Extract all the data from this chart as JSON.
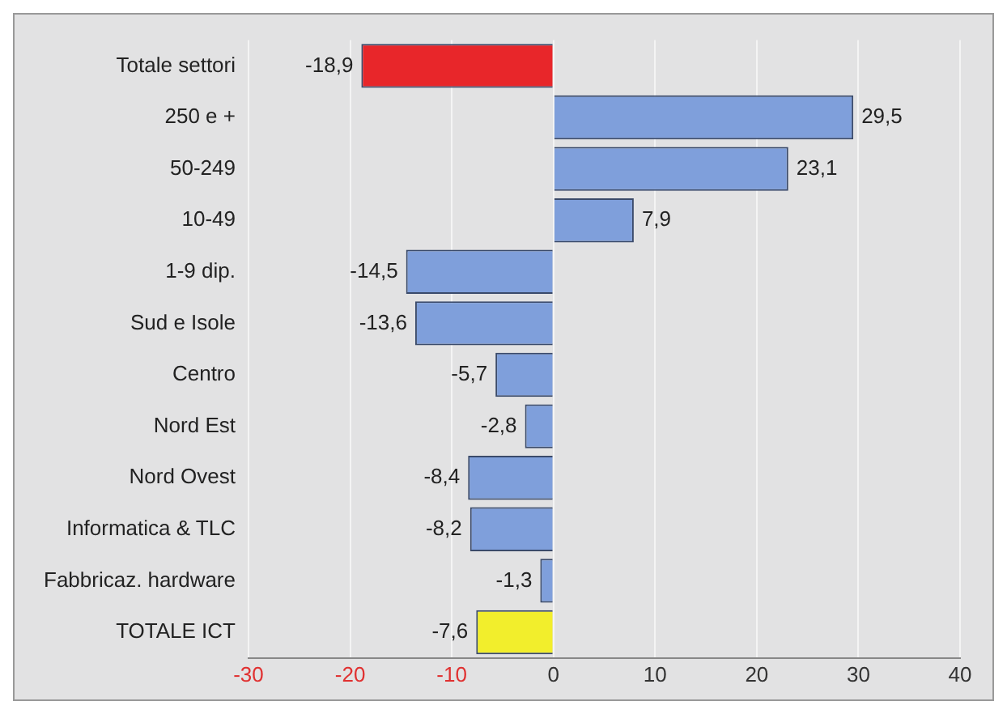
{
  "chart_data": {
    "type": "bar",
    "orientation": "horizontal",
    "categories": [
      "Totale settori",
      "250 e +",
      "50-249",
      "10-49",
      "1-9 dip.",
      "Sud e Isole",
      "Centro",
      "Nord Est",
      "Nord Ovest",
      "Informatica & TLC",
      "Fabbricaz. hardware",
      "TOTALE ICT"
    ],
    "values": [
      -18.9,
      29.5,
      23.1,
      7.9,
      -14.5,
      -13.6,
      -5.7,
      -2.8,
      -8.4,
      -8.2,
      -1.3,
      -7.6
    ],
    "value_labels": [
      "-18,9",
      "29,5",
      "23,1",
      "7,9",
      "-14,5",
      "-13,6",
      "-5,7",
      "-2,8",
      "-8,4",
      "-8,2",
      "-1,3",
      "-7,6"
    ],
    "colors": [
      "#e8262a",
      "#7f9fdb",
      "#7f9fdb",
      "#7f9fdb",
      "#7f9fdb",
      "#7f9fdb",
      "#7f9fdb",
      "#7f9fdb",
      "#7f9fdb",
      "#7f9fdb",
      "#7f9fdb",
      "#f2ee2c"
    ],
    "xlim": [
      -30,
      40
    ],
    "xticks": [
      -30,
      -20,
      -10,
      0,
      10,
      20,
      30,
      40
    ],
    "grid": "x",
    "legend": false
  }
}
